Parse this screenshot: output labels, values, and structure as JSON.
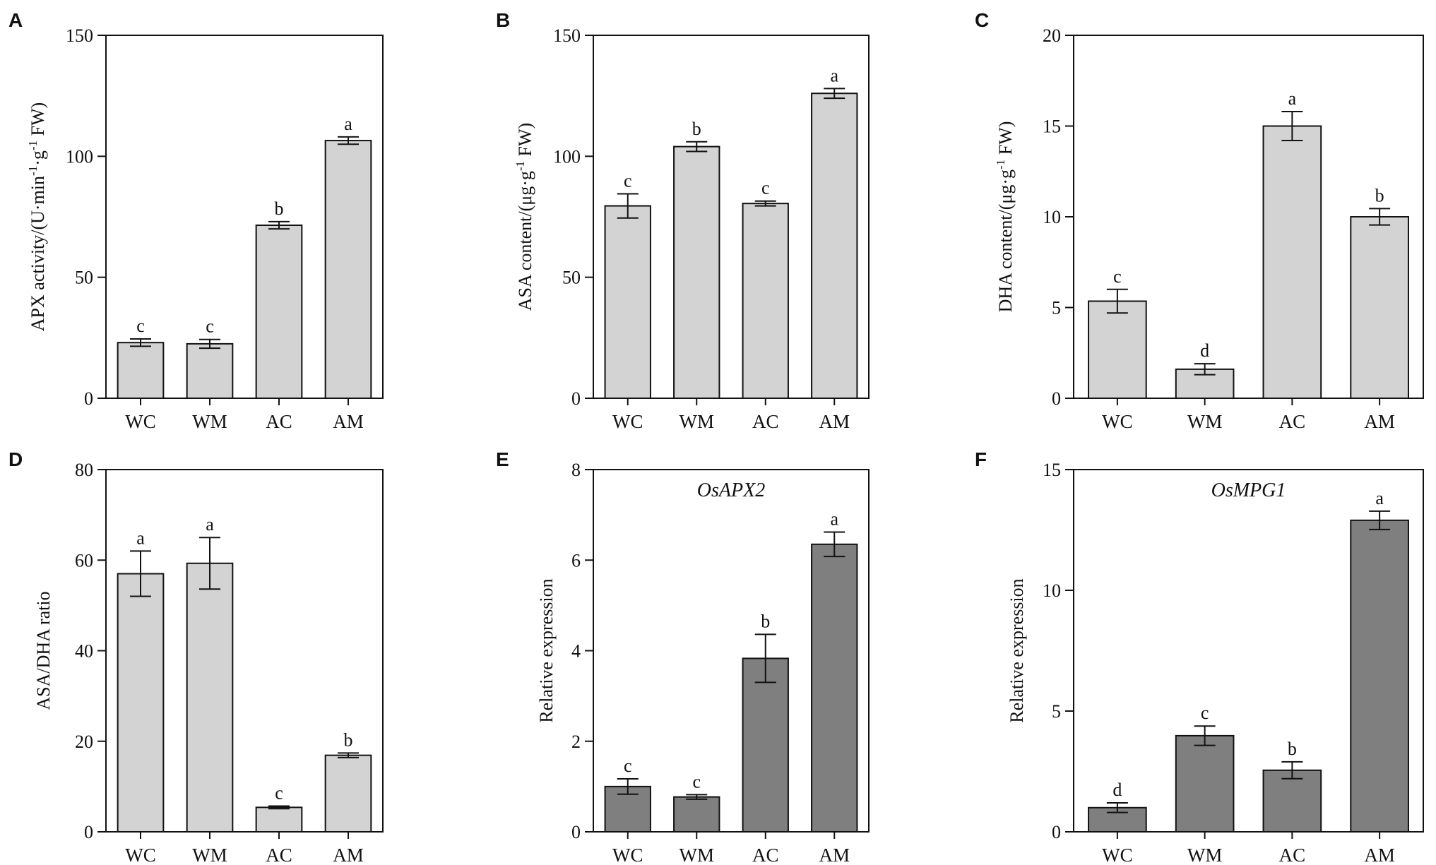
{
  "colors": {
    "light_bar": "#d3d3d3",
    "dark_bar": "#7f7f7f",
    "ink": "#111111"
  },
  "chart_data": [
    {
      "panel": "A",
      "type": "bar",
      "title": "",
      "ylabel_parts": [
        "APX activity/(U·min",
        "-1",
        "·g",
        "-1",
        " FW)"
      ],
      "xlabel": "",
      "categories": [
        "WC",
        "WM",
        "AC",
        "AM"
      ],
      "values": [
        23,
        22.5,
        71.5,
        106.5
      ],
      "errors": [
        1.5,
        1.8,
        1.5,
        1.5
      ],
      "significance": [
        "c",
        "c",
        "b",
        "a"
      ],
      "ylim": [
        0,
        150
      ],
      "yticks": [
        0,
        50,
        100,
        150
      ],
      "bar_color": "light"
    },
    {
      "panel": "B",
      "type": "bar",
      "title": "",
      "ylabel_parts": [
        "ASA content/(μg·g",
        "-1",
        " FW)"
      ],
      "xlabel": "",
      "categories": [
        "WC",
        "WM",
        "AC",
        "AM"
      ],
      "values": [
        79.5,
        104,
        80.5,
        126
      ],
      "errors": [
        5,
        2,
        1,
        2
      ],
      "significance": [
        "c",
        "b",
        "c",
        "a"
      ],
      "ylim": [
        0,
        150
      ],
      "yticks": [
        0,
        50,
        100,
        150
      ],
      "bar_color": "light"
    },
    {
      "panel": "C",
      "type": "bar",
      "title": "",
      "ylabel_parts": [
        "DHA content/(μg·g",
        "-1",
        " FW)"
      ],
      "xlabel": "",
      "categories": [
        "WC",
        "WM",
        "AC",
        "AM"
      ],
      "values": [
        5.35,
        1.6,
        15,
        10
      ],
      "errors": [
        0.65,
        0.3,
        0.8,
        0.45
      ],
      "significance": [
        "c",
        "d",
        "a",
        "b"
      ],
      "ylim": [
        0,
        20
      ],
      "yticks": [
        0,
        5,
        10,
        15,
        20
      ],
      "bar_color": "light"
    },
    {
      "panel": "D",
      "type": "bar",
      "title": "",
      "ylabel_parts": [
        "ASA/DHA ratio"
      ],
      "xlabel": "",
      "categories": [
        "WC",
        "WM",
        "AC",
        "AM"
      ],
      "values": [
        57,
        59.3,
        5.4,
        16.9
      ],
      "errors": [
        5,
        5.7,
        0.3,
        0.5
      ],
      "significance": [
        "a",
        "a",
        "c",
        "b"
      ],
      "ylim": [
        0,
        80
      ],
      "yticks": [
        0,
        20,
        40,
        60,
        80
      ],
      "bar_color": "light"
    },
    {
      "panel": "E",
      "type": "bar",
      "title": "OsAPX2",
      "ylabel_parts": [
        "Relative expression"
      ],
      "xlabel": "",
      "categories": [
        "WC",
        "WM",
        "AC",
        "AM"
      ],
      "values": [
        1.0,
        0.77,
        3.83,
        6.35
      ],
      "errors": [
        0.17,
        0.05,
        0.53,
        0.27
      ],
      "significance": [
        "c",
        "c",
        "b",
        "a"
      ],
      "ylim": [
        0,
        8
      ],
      "yticks": [
        0,
        2,
        4,
        6,
        8
      ],
      "bar_color": "dark"
    },
    {
      "panel": "F",
      "type": "bar",
      "title": "OsMPG1",
      "ylabel_parts": [
        "Relative expression"
      ],
      "xlabel": "",
      "categories": [
        "WC",
        "WM",
        "AC",
        "AM"
      ],
      "values": [
        1.0,
        3.98,
        2.55,
        12.9
      ],
      "errors": [
        0.2,
        0.4,
        0.35,
        0.38
      ],
      "significance": [
        "d",
        "c",
        "b",
        "a"
      ],
      "ylim": [
        0,
        15
      ],
      "yticks": [
        0,
        5,
        10,
        15
      ],
      "bar_color": "dark"
    }
  ]
}
